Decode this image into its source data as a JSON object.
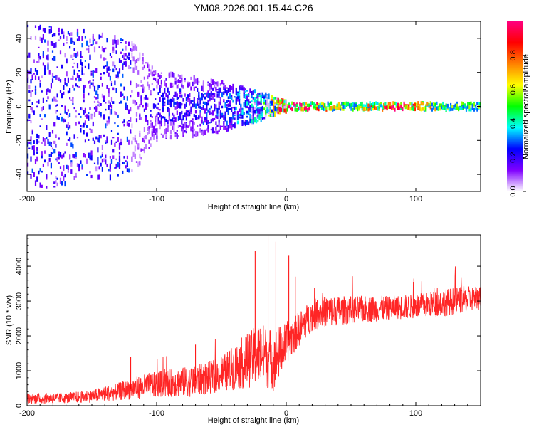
{
  "title": "YM08.2026.001.15.44.C26",
  "chart_data": [
    {
      "type": "heatmap",
      "title": "YM08.2026.001.15.44.C26",
      "xlabel": "Height of straight line (km)",
      "ylabel": "Frequency (Hz)",
      "xlim": [
        -200,
        150
      ],
      "ylim": [
        -50,
        50
      ],
      "x_ticks": [
        -200,
        -100,
        0,
        100
      ],
      "y_ticks": [
        -40,
        -20,
        0,
        20,
        40
      ],
      "colorbar": {
        "label": "Normalized spectral amplitude",
        "range": [
          0,
          1
        ],
        "ticks": [
          0.0,
          0.2,
          0.4,
          0.6,
          0.8
        ],
        "tick_labels": [
          "0.0",
          "0.2",
          "0.4",
          "0.6",
          "0.8"
        ],
        "colors": [
          "#ffffff",
          "#8000ff",
          "#0000ff",
          "#00ffff",
          "#00ff00",
          "#ffff00",
          "#ff8000",
          "#ff0000",
          "#ff0080"
        ]
      },
      "description_points": [
        {
          "x": -200,
          "y_spread": 50,
          "level": 0.1
        },
        {
          "x": -120,
          "y_spread": 40,
          "level": 0.12
        },
        {
          "x": -100,
          "y_spread": 20,
          "level": 0.2
        },
        {
          "x": -50,
          "y_spread": 15,
          "level": 0.25
        },
        {
          "x": -20,
          "y_spread": 8,
          "level": 0.35
        },
        {
          "x": 0,
          "y_spread": 3,
          "level": 0.9
        },
        {
          "x": 20,
          "y_spread": 3,
          "level": 0.8
        },
        {
          "x": 50,
          "y_spread": 3,
          "level": 0.4
        },
        {
          "x": 80,
          "y_spread": 3,
          "level": 0.95
        },
        {
          "x": 120,
          "y_spread": 3,
          "level": 0.5
        },
        {
          "x": 150,
          "y_spread": 3,
          "level": 0.5
        }
      ]
    },
    {
      "type": "line",
      "xlabel": "Height of straight line (km)",
      "ylabel": "SNR (10 * v/v)",
      "xlim": [
        -200,
        150
      ],
      "ylim": [
        0,
        4900
      ],
      "x_ticks": [
        -200,
        -100,
        0,
        100
      ],
      "y_ticks": [
        0,
        1000,
        2000,
        3000,
        4000
      ],
      "color": "#ff0000",
      "envelope": {
        "x": [
          -200,
          -170,
          -150,
          -130,
          -110,
          -90,
          -70,
          -50,
          -40,
          -30,
          -20,
          -10,
          0,
          10,
          20,
          30,
          50,
          80,
          100,
          130,
          150
        ],
        "mean": [
          200,
          220,
          280,
          400,
          550,
          650,
          700,
          900,
          1100,
          1300,
          1500,
          1300,
          1800,
          2200,
          2600,
          2700,
          2750,
          2800,
          2850,
          3000,
          3100
        ],
        "spread": [
          150,
          150,
          180,
          250,
          350,
          400,
          450,
          500,
          650,
          800,
          900,
          900,
          600,
          500,
          450,
          450,
          400,
          350,
          350,
          400,
          350
        ]
      },
      "spikes": [
        {
          "x": -120,
          "y": 1400
        },
        {
          "x": -70,
          "y": 1750
        },
        {
          "x": -24,
          "y": 4450
        },
        {
          "x": -14,
          "y": 4900
        },
        {
          "x": -8,
          "y": 4700
        },
        {
          "x": 2,
          "y": 4300
        },
        {
          "x": 7,
          "y": 3700
        }
      ]
    }
  ]
}
